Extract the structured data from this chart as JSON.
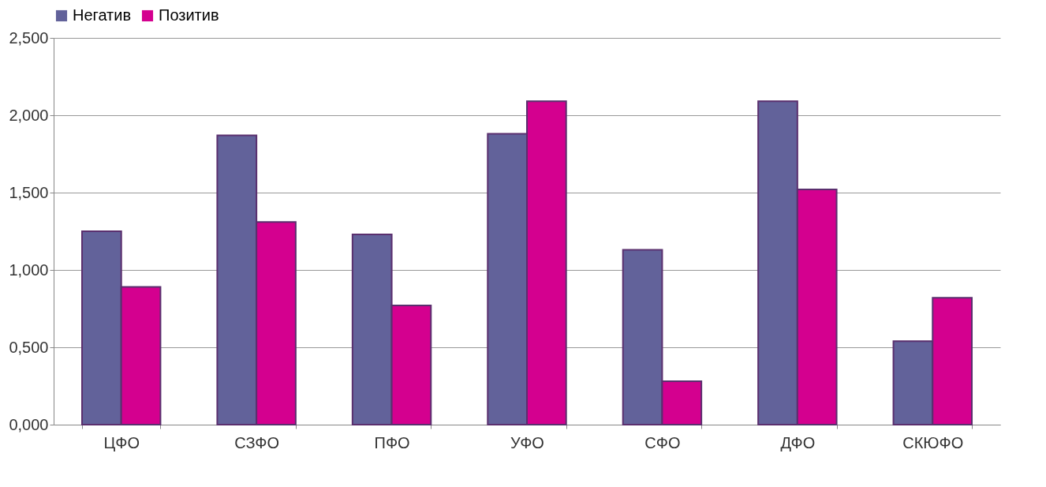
{
  "chart_data": {
    "type": "bar",
    "categories": [
      "ЦФО",
      "СЗФО",
      "ПФО",
      "УФО",
      "СФО",
      "ДФО",
      "СКЮФО"
    ],
    "series": [
      {
        "name": "Негатив",
        "color": "#62629a",
        "values": [
          1.25,
          1.87,
          1.23,
          1.88,
          1.13,
          2.09,
          0.54
        ]
      },
      {
        "name": "Позитив",
        "color": "#d4008f",
        "values": [
          0.89,
          1.31,
          0.77,
          2.09,
          0.28,
          1.52,
          0.82
        ]
      }
    ],
    "ylim": [
      0,
      2.5
    ],
    "yticks": [
      {
        "value": 0,
        "label": "0,000"
      },
      {
        "value": 0.5,
        "label": "0,500"
      },
      {
        "value": 1,
        "label": "1,000"
      },
      {
        "value": 1.5,
        "label": "1,500"
      },
      {
        "value": 2,
        "label": "2,000"
      },
      {
        "value": 2.5,
        "label": "2,500"
      }
    ],
    "grid": "y",
    "legend": "top"
  }
}
